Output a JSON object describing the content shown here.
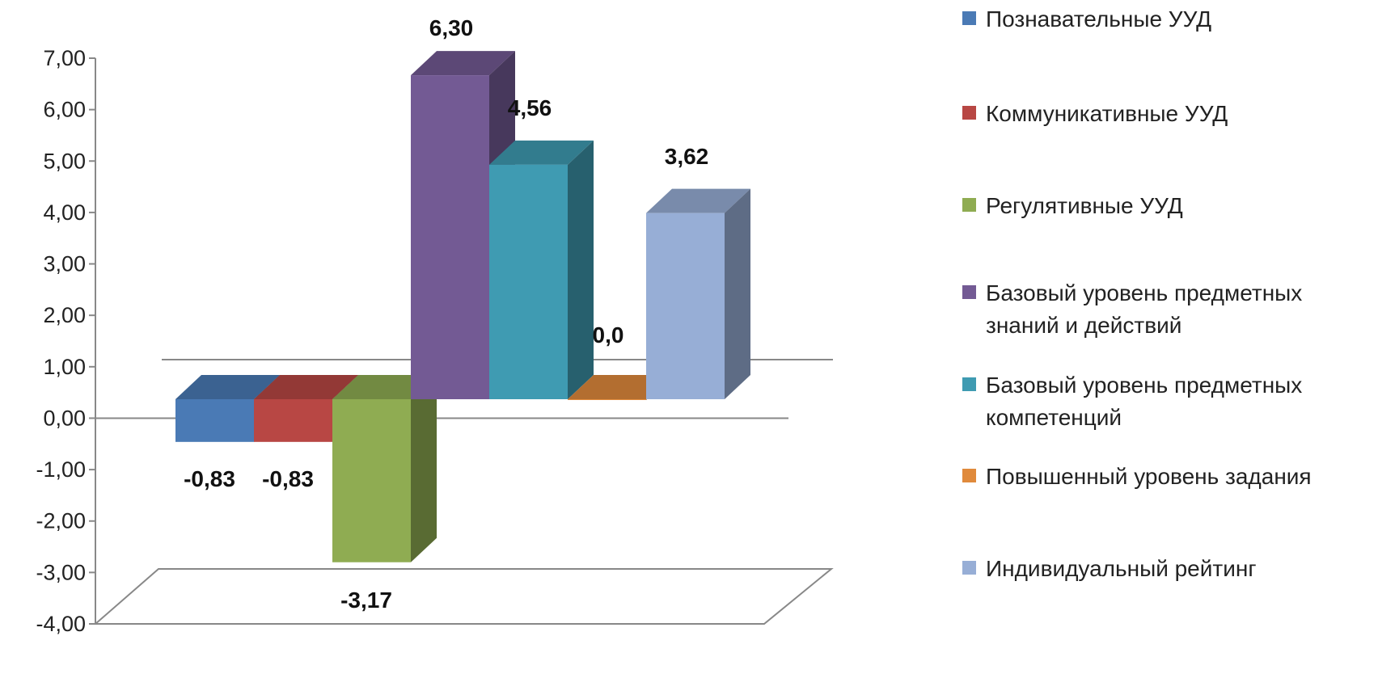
{
  "chart_data": {
    "type": "bar",
    "title": "",
    "xlabel": "",
    "ylabel": "",
    "ylim": [
      -4,
      7
    ],
    "yticks": [
      "7,00",
      "6,00",
      "5,00",
      "4,00",
      "3,00",
      "2,00",
      "1,00",
      "0,00",
      "-1,00",
      "-2,00",
      "-3,00",
      "-4,00"
    ],
    "legend_position": "right",
    "series": [
      {
        "name": "Познавательные УУД",
        "value": -0.83,
        "label": "-0,83",
        "color": "#4a7ab5"
      },
      {
        "name": "Коммуникативные УУД",
        "value": -0.83,
        "label": "-0,83",
        "color": "#b84744"
      },
      {
        "name": "Регулятивные УУД",
        "value": -3.17,
        "label": "-3,17",
        "color": "#8fac52"
      },
      {
        "name": "Базовый уровень предметных знаний и действий",
        "value": 6.3,
        "label": "6,30",
        "color": "#735a94"
      },
      {
        "name": "Базовый уровень предметных компетенций",
        "value": 4.56,
        "label": "4,56",
        "color": "#3f9bb2"
      },
      {
        "name": "Повышенный уровень задания",
        "value": 0.0,
        "label": "0,0",
        "color": "#e08a3c"
      },
      {
        "name": "Индивидуальный рейтинг",
        "value": 3.62,
        "label": "3,62",
        "color": "#97aed6"
      }
    ]
  }
}
